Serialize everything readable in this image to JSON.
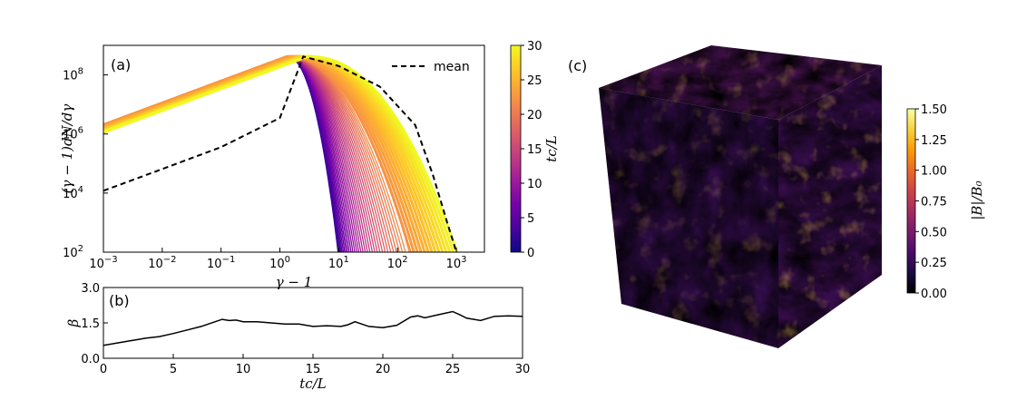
{
  "chart_data": [
    {
      "type": "line",
      "panel_label": "(a)",
      "xlabel": "γ − 1",
      "ylabel": "(γ − 1)dN/dγ",
      "xscale": "log",
      "yscale": "log",
      "xlim": [
        0.001,
        3000
      ],
      "ylim": [
        100,
        1000000000
      ],
      "xticks": [
        {
          "v": 0.001,
          "t": "10",
          "e": "−3"
        },
        {
          "v": 0.01,
          "t": "10",
          "e": "−2"
        },
        {
          "v": 0.1,
          "t": "10",
          "e": "−1"
        },
        {
          "v": 1,
          "t": "10",
          "e": "0"
        },
        {
          "v": 10,
          "t": "10",
          "e": "1"
        },
        {
          "v": 100,
          "t": "10",
          "e": "2"
        },
        {
          "v": 1000,
          "t": "10",
          "e": "3"
        }
      ],
      "yticks": [
        {
          "v": 100,
          "t": "10",
          "e": "2"
        },
        {
          "v": 10000,
          "t": "10",
          "e": "4"
        },
        {
          "v": 1000000,
          "t": "10",
          "e": "6"
        },
        {
          "v": 100000000,
          "t": "10",
          "e": "8"
        }
      ],
      "legend": {
        "label": "mean",
        "position": "top-right"
      },
      "series_description": "Particle energy spectra, one curve per time tc/L from 0 to 30, colored by tc/L",
      "spectrum_model": {
        "powerlaw_slope": 0.74,
        "early_cutoff_range": [
          10,
          160
        ],
        "late_cutoff_range": [
          170,
          1100
        ],
        "peak_shift_range": [
          1.3,
          3.0
        ]
      },
      "mean_curve": [
        [
          0.001,
          12000
        ],
        [
          0.01,
          65000
        ],
        [
          0.1,
          360000
        ],
        [
          1,
          3500000
        ],
        [
          2.5,
          420000000
        ],
        [
          10,
          200000000
        ],
        [
          50,
          40000000
        ],
        [
          200,
          2000000
        ],
        [
          400,
          40000
        ],
        [
          700,
          1000
        ],
        [
          1000,
          100
        ]
      ]
    },
    {
      "type": "line",
      "panel_label": "(b)",
      "xlabel": "tc/L",
      "ylabel": "β",
      "xlim": [
        0,
        30
      ],
      "ylim": [
        0.0,
        3.0
      ],
      "xticks": [
        {
          "v": 0,
          "t": "0"
        },
        {
          "v": 5,
          "t": "5"
        },
        {
          "v": 10,
          "t": "10"
        },
        {
          "v": 15,
          "t": "15"
        },
        {
          "v": 20,
          "t": "20"
        },
        {
          "v": 25,
          "t": "25"
        },
        {
          "v": 30,
          "t": "30"
        }
      ],
      "yticks": [
        {
          "v": 0.0,
          "t": "0.0"
        },
        {
          "v": 1.5,
          "t": "1.5"
        },
        {
          "v": 3.0,
          "t": "3.0"
        }
      ],
      "x": [
        0,
        1,
        2,
        2.5,
        3,
        4,
        5,
        6,
        7,
        8,
        8.5,
        9,
        9.5,
        10,
        11,
        12,
        13,
        14,
        15,
        16,
        17,
        17.5,
        18,
        19,
        20,
        21,
        22,
        22.5,
        23,
        24,
        25,
        25.5,
        26,
        27,
        28,
        29,
        30
      ],
      "values": [
        0.55,
        0.65,
        0.75,
        0.8,
        0.85,
        0.92,
        1.05,
        1.2,
        1.35,
        1.55,
        1.65,
        1.6,
        1.62,
        1.55,
        1.55,
        1.5,
        1.45,
        1.45,
        1.35,
        1.38,
        1.35,
        1.42,
        1.55,
        1.35,
        1.3,
        1.4,
        1.75,
        1.8,
        1.72,
        1.85,
        1.98,
        1.85,
        1.7,
        1.6,
        1.78,
        1.8,
        1.78
      ]
    },
    {
      "type": "colorbar",
      "label": "tc/L",
      "colormap": "plasma",
      "range": [
        0,
        30
      ],
      "ticks": [
        "0",
        "5",
        "10",
        "15",
        "20",
        "25",
        "30"
      ],
      "tick_values": [
        0,
        5,
        10,
        15,
        20,
        25,
        30
      ]
    },
    {
      "type": "heatmap",
      "panel_label": "(c)",
      "description": "3D cube volume render of turbulent magnetic field magnitude",
      "colorbar": {
        "label": "|B|/B₀",
        "colormap": "inferno",
        "range": [
          0.0,
          1.5
        ],
        "ticks": [
          "0.00",
          "0.25",
          "0.50",
          "0.75",
          "1.00",
          "1.25",
          "1.50"
        ],
        "tick_values": [
          0.0,
          0.25,
          0.5,
          0.75,
          1.0,
          1.25,
          1.5
        ]
      }
    }
  ],
  "colors": {
    "plasma": [
      "#0d0887",
      "#46039f",
      "#7201a8",
      "#9c179e",
      "#bd3786",
      "#d8576b",
      "#ed7953",
      "#fb9f3a",
      "#fdca26",
      "#f0f921"
    ],
    "inferno": [
      "#000004",
      "#1b0c41",
      "#4a0c6b",
      "#781c6d",
      "#a52c60",
      "#cf4446",
      "#ed6925",
      "#fb9b06",
      "#f7d13d",
      "#fcffa4"
    ],
    "mean_line": "#000000"
  }
}
